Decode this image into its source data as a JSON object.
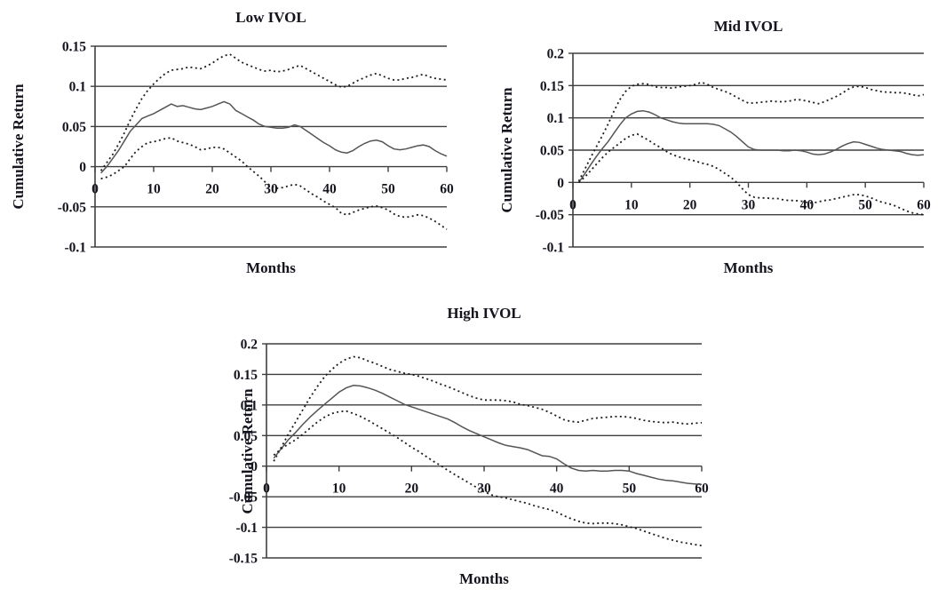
{
  "page": {
    "background": "#ffffff",
    "text_color": "#14141f"
  },
  "chart_data": [
    {
      "type": "line",
      "title": "Low IVOL",
      "xlabel": "Months",
      "ylabel": "Cumulative Return",
      "xlim": [
        0,
        60
      ],
      "ylim": [
        -0.1,
        0.15
      ],
      "xticks": [
        0,
        10,
        20,
        30,
        40,
        50,
        60
      ],
      "yticks": [
        0.15,
        0.1,
        0.05,
        0,
        -0.05,
        -0.1
      ],
      "grid": true,
      "legend": "none",
      "x_start_month": 1,
      "colors": {
        "solid_line": "#555555",
        "dotted_line": "#1c1c1c",
        "grid_line": "#3f3f3f"
      },
      "series": [
        {
          "name": "upper-dotted-band",
          "style": "dotted",
          "values": [
            -0.005,
            0.005,
            0.015,
            0.028,
            0.042,
            0.058,
            0.072,
            0.085,
            0.095,
            0.103,
            0.11,
            0.116,
            0.12,
            0.121,
            0.122,
            0.124,
            0.123,
            0.122,
            0.125,
            0.129,
            0.134,
            0.138,
            0.14,
            0.135,
            0.13,
            0.127,
            0.124,
            0.121,
            0.119,
            0.12,
            0.118,
            0.119,
            0.121,
            0.124,
            0.126,
            0.122,
            0.118,
            0.114,
            0.11,
            0.106,
            0.102,
            0.099,
            0.1,
            0.104,
            0.108,
            0.111,
            0.114,
            0.116,
            0.113,
            0.11,
            0.108,
            0.108,
            0.11,
            0.111,
            0.113,
            0.115,
            0.112,
            0.11,
            0.109,
            0.108
          ]
        },
        {
          "name": "solid-mean",
          "style": "solid",
          "values": [
            -0.008,
            0.0,
            0.01,
            0.02,
            0.032,
            0.044,
            0.052,
            0.06,
            0.063,
            0.066,
            0.07,
            0.074,
            0.078,
            0.075,
            0.076,
            0.074,
            0.072,
            0.071,
            0.073,
            0.075,
            0.078,
            0.081,
            0.078,
            0.07,
            0.066,
            0.062,
            0.058,
            0.053,
            0.05,
            0.049,
            0.048,
            0.048,
            0.049,
            0.052,
            0.05,
            0.045,
            0.04,
            0.035,
            0.03,
            0.026,
            0.021,
            0.018,
            0.017,
            0.02,
            0.025,
            0.029,
            0.032,
            0.033,
            0.031,
            0.026,
            0.022,
            0.021,
            0.022,
            0.024,
            0.026,
            0.027,
            0.025,
            0.02,
            0.016,
            0.013
          ]
        },
        {
          "name": "lower-dotted-band",
          "style": "dotted",
          "values": [
            -0.015,
            -0.013,
            -0.01,
            -0.005,
            0.0,
            0.01,
            0.019,
            0.025,
            0.03,
            0.031,
            0.033,
            0.035,
            0.036,
            0.032,
            0.03,
            0.028,
            0.025,
            0.021,
            0.022,
            0.024,
            0.024,
            0.022,
            0.017,
            0.012,
            0.007,
            0.0,
            -0.006,
            -0.012,
            -0.019,
            -0.024,
            -0.027,
            -0.026,
            -0.024,
            -0.022,
            -0.024,
            -0.029,
            -0.034,
            -0.038,
            -0.043,
            -0.047,
            -0.051,
            -0.058,
            -0.06,
            -0.057,
            -0.054,
            -0.052,
            -0.05,
            -0.049,
            -0.051,
            -0.054,
            -0.059,
            -0.062,
            -0.063,
            -0.062,
            -0.06,
            -0.061,
            -0.064,
            -0.068,
            -0.073,
            -0.078
          ]
        }
      ]
    },
    {
      "type": "line",
      "title": "Mid IVOL",
      "xlabel": "Months",
      "ylabel": "Cumulative Return",
      "xlim": [
        0,
        60
      ],
      "ylim": [
        -0.1,
        0.2
      ],
      "xticks": [
        0,
        10,
        20,
        30,
        40,
        50,
        60
      ],
      "yticks": [
        0.2,
        0.15,
        0.1,
        0.05,
        0,
        -0.05,
        -0.1
      ],
      "grid": true,
      "legend": "none",
      "x_start_month": 1,
      "colors": {
        "solid_line": "#555555",
        "dotted_line": "#1c1c1c",
        "grid_line": "#3f3f3f"
      },
      "series": [
        {
          "name": "upper-dotted-band",
          "style": "dotted",
          "values": [
            0.002,
            0.02,
            0.038,
            0.055,
            0.072,
            0.09,
            0.11,
            0.128,
            0.141,
            0.149,
            0.152,
            0.153,
            0.152,
            0.148,
            0.147,
            0.147,
            0.146,
            0.148,
            0.149,
            0.15,
            0.152,
            0.155,
            0.152,
            0.147,
            0.144,
            0.141,
            0.137,
            0.132,
            0.127,
            0.123,
            0.123,
            0.124,
            0.125,
            0.126,
            0.125,
            0.125,
            0.126,
            0.128,
            0.128,
            0.126,
            0.124,
            0.122,
            0.125,
            0.129,
            0.133,
            0.138,
            0.144,
            0.148,
            0.149,
            0.147,
            0.144,
            0.142,
            0.14,
            0.14,
            0.139,
            0.139,
            0.138,
            0.136,
            0.134,
            0.136
          ]
        },
        {
          "name": "solid-mean",
          "style": "solid",
          "values": [
            0.0,
            0.013,
            0.027,
            0.04,
            0.052,
            0.063,
            0.076,
            0.089,
            0.1,
            0.106,
            0.11,
            0.111,
            0.109,
            0.105,
            0.1,
            0.097,
            0.094,
            0.092,
            0.091,
            0.091,
            0.091,
            0.091,
            0.091,
            0.09,
            0.088,
            0.083,
            0.078,
            0.071,
            0.063,
            0.055,
            0.051,
            0.05,
            0.05,
            0.05,
            0.05,
            0.049,
            0.049,
            0.05,
            0.049,
            0.047,
            0.044,
            0.043,
            0.044,
            0.047,
            0.051,
            0.056,
            0.06,
            0.063,
            0.062,
            0.059,
            0.056,
            0.053,
            0.051,
            0.05,
            0.049,
            0.048,
            0.045,
            0.043,
            0.042,
            0.043
          ]
        },
        {
          "name": "lower-dotted-band",
          "style": "dotted",
          "values": [
            0.0,
            0.008,
            0.018,
            0.028,
            0.038,
            0.047,
            0.054,
            0.061,
            0.068,
            0.073,
            0.075,
            0.07,
            0.065,
            0.059,
            0.054,
            0.048,
            0.043,
            0.04,
            0.037,
            0.035,
            0.033,
            0.03,
            0.028,
            0.025,
            0.02,
            0.014,
            0.008,
            0.0,
            -0.01,
            -0.019,
            -0.023,
            -0.024,
            -0.024,
            -0.025,
            -0.025,
            -0.027,
            -0.028,
            -0.028,
            -0.029,
            -0.031,
            -0.032,
            -0.03,
            -0.028,
            -0.027,
            -0.025,
            -0.023,
            -0.021,
            -0.019,
            -0.019,
            -0.021,
            -0.024,
            -0.028,
            -0.031,
            -0.033,
            -0.036,
            -0.04,
            -0.044,
            -0.047,
            -0.049,
            -0.05
          ]
        }
      ]
    },
    {
      "type": "line",
      "title": "High IVOL",
      "xlabel": "Months",
      "ylabel": "Cumulative Return",
      "xlim": [
        0,
        60
      ],
      "ylim": [
        -0.15,
        0.2
      ],
      "xticks": [
        0,
        10,
        20,
        30,
        40,
        50,
        60
      ],
      "yticks": [
        0.2,
        0.15,
        0.1,
        0.05,
        0,
        -0.05,
        -0.1,
        -0.15
      ],
      "grid": true,
      "legend": "none",
      "x_start_month": 1,
      "colors": {
        "solid_line": "#555555",
        "dotted_line": "#1c1c1c",
        "grid_line": "#3f3f3f"
      },
      "series": [
        {
          "name": "upper-dotted-band",
          "style": "dotted",
          "values": [
            0.008,
            0.03,
            0.052,
            0.072,
            0.092,
            0.112,
            0.13,
            0.146,
            0.158,
            0.168,
            0.175,
            0.179,
            0.177,
            0.172,
            0.168,
            0.163,
            0.158,
            0.155,
            0.152,
            0.15,
            0.147,
            0.143,
            0.139,
            0.134,
            0.13,
            0.125,
            0.12,
            0.115,
            0.111,
            0.108,
            0.108,
            0.108,
            0.107,
            0.105,
            0.101,
            0.099,
            0.096,
            0.093,
            0.088,
            0.082,
            0.076,
            0.073,
            0.072,
            0.075,
            0.078,
            0.079,
            0.08,
            0.081,
            0.081,
            0.08,
            0.078,
            0.075,
            0.073,
            0.072,
            0.071,
            0.072,
            0.07,
            0.069,
            0.07,
            0.071
          ]
        },
        {
          "name": "solid-mean",
          "style": "solid",
          "values": [
            0.013,
            0.028,
            0.043,
            0.055,
            0.068,
            0.08,
            0.091,
            0.101,
            0.111,
            0.121,
            0.128,
            0.132,
            0.131,
            0.128,
            0.124,
            0.119,
            0.113,
            0.107,
            0.101,
            0.097,
            0.093,
            0.089,
            0.085,
            0.081,
            0.077,
            0.071,
            0.064,
            0.058,
            0.053,
            0.048,
            0.043,
            0.038,
            0.034,
            0.032,
            0.03,
            0.027,
            0.022,
            0.017,
            0.016,
            0.012,
            0.004,
            -0.003,
            -0.007,
            -0.008,
            -0.007,
            -0.008,
            -0.008,
            -0.007,
            -0.007,
            -0.008,
            -0.012,
            -0.015,
            -0.018,
            -0.021,
            -0.023,
            -0.024,
            -0.026,
            -0.028,
            -0.029,
            -0.03
          ]
        },
        {
          "name": "lower-dotted-band",
          "style": "dotted",
          "values": [
            0.018,
            0.028,
            0.036,
            0.043,
            0.052,
            0.062,
            0.072,
            0.08,
            0.086,
            0.089,
            0.09,
            0.086,
            0.081,
            0.075,
            0.068,
            0.061,
            0.054,
            0.047,
            0.039,
            0.031,
            0.024,
            0.016,
            0.008,
            0.001,
            -0.007,
            -0.014,
            -0.021,
            -0.028,
            -0.035,
            -0.042,
            -0.047,
            -0.05,
            -0.052,
            -0.055,
            -0.058,
            -0.061,
            -0.065,
            -0.068,
            -0.071,
            -0.075,
            -0.081,
            -0.086,
            -0.09,
            -0.093,
            -0.094,
            -0.093,
            -0.093,
            -0.094,
            -0.096,
            -0.099,
            -0.102,
            -0.106,
            -0.11,
            -0.114,
            -0.118,
            -0.121,
            -0.124,
            -0.126,
            -0.128,
            -0.13
          ]
        }
      ]
    }
  ]
}
